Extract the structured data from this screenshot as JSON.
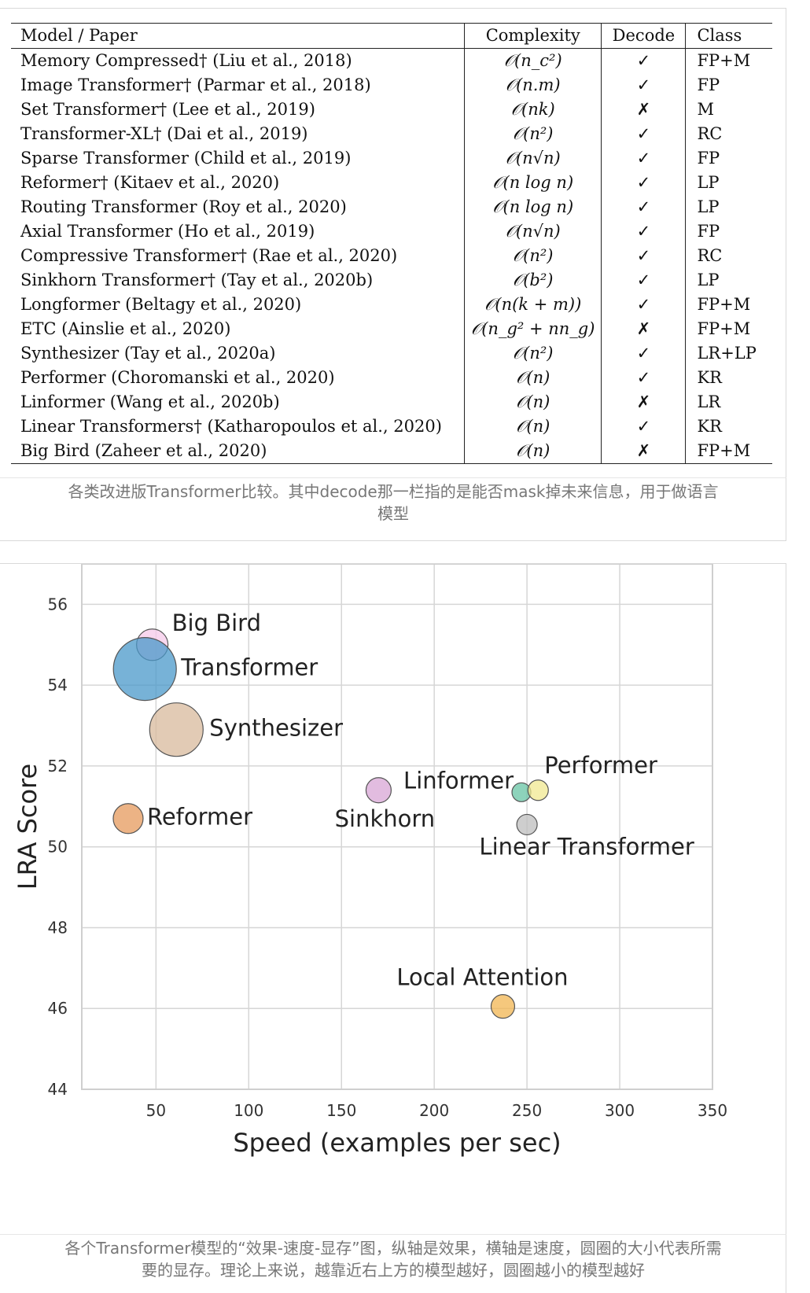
{
  "table": {
    "headers": {
      "model": "Model / Paper",
      "complexity": "Complexity",
      "decode": "Decode",
      "class": "Class"
    },
    "rows": [
      {
        "model": "Memory Compressed† (Liu et al., 2018)",
        "complexity": "𝒪(n_c²)",
        "decode": "✓",
        "class": "FP+M"
      },
      {
        "model": "Image Transformer† (Parmar et al., 2018)",
        "complexity": "𝒪(n.m)",
        "decode": "✓",
        "class": "FP"
      },
      {
        "model": "Set Transformer† (Lee et al., 2019)",
        "complexity": "𝒪(nk)",
        "decode": "✗",
        "class": "M"
      },
      {
        "model": "Transformer-XL† (Dai et al., 2019)",
        "complexity": "𝒪(n²)",
        "decode": "✓",
        "class": "RC"
      },
      {
        "model": "Sparse Transformer  (Child et al., 2019)",
        "complexity": "𝒪(n√n)",
        "decode": "✓",
        "class": "FP"
      },
      {
        "model": "Reformer† (Kitaev et al., 2020)",
        "complexity": "𝒪(n log n)",
        "decode": "✓",
        "class": "LP"
      },
      {
        "model": "Routing Transformer (Roy et al., 2020)",
        "complexity": "𝒪(n log n)",
        "decode": "✓",
        "class": "LP"
      },
      {
        "model": "Axial Transformer (Ho et al., 2019)",
        "complexity": "𝒪(n√n)",
        "decode": "✓",
        "class": "FP"
      },
      {
        "model": "Compressive Transformer† (Rae et al., 2020)",
        "complexity": "𝒪(n²)",
        "decode": "✓",
        "class": "RC"
      },
      {
        "model": "Sinkhorn Transformer† (Tay et al., 2020b)",
        "complexity": "𝒪(b²)",
        "decode": "✓",
        "class": "LP"
      },
      {
        "model": "Longformer (Beltagy et al., 2020)",
        "complexity": "𝒪(n(k + m))",
        "decode": "✓",
        "class": "FP+M"
      },
      {
        "model": "ETC (Ainslie et al., 2020)",
        "complexity": "𝒪(n_g² + nn_g)",
        "decode": "✗",
        "class": "FP+M"
      },
      {
        "model": "Synthesizer (Tay et al., 2020a)",
        "complexity": "𝒪(n²)",
        "decode": "✓",
        "class": "LR+LP"
      },
      {
        "model": "Performer (Choromanski et al., 2020)",
        "complexity": "𝒪(n)",
        "decode": "✓",
        "class": "KR"
      },
      {
        "model": "Linformer (Wang et al., 2020b)",
        "complexity": "𝒪(n)",
        "decode": "✗",
        "class": "LR"
      },
      {
        "model": "Linear Transformers†  (Katharopoulos et al., 2020)",
        "complexity": "𝒪(n)",
        "decode": "✓",
        "class": "KR"
      },
      {
        "model": "Big Bird (Zaheer et al., 2020)",
        "complexity": "𝒪(n)",
        "decode": "✗",
        "class": "FP+M"
      }
    ],
    "caption": "各类改进版Transformer比较。其中decode那一栏指的是能否mask掉未来信息，用于做语言模型"
  },
  "chart_data": {
    "type": "scatter",
    "xlabel": "Speed (examples per sec)",
    "ylabel": "LRA Score",
    "xlim": [
      10,
      350
    ],
    "ylim": [
      44,
      57
    ],
    "xticks": [
      50,
      100,
      150,
      200,
      250,
      300,
      350
    ],
    "yticks": [
      44,
      46,
      48,
      50,
      52,
      54,
      56
    ],
    "grid": true,
    "points": [
      {
        "name": "Big Bird",
        "x": 48,
        "y": 55.0,
        "size": 20,
        "color": "#f6c9ea"
      },
      {
        "name": "Transformer",
        "x": 44,
        "y": 54.4,
        "size": 40,
        "color": "#4a98c9"
      },
      {
        "name": "Synthesizer",
        "x": 61,
        "y": 52.9,
        "size": 34,
        "color": "#d8b99c"
      },
      {
        "name": "Reformer",
        "x": 35,
        "y": 50.7,
        "size": 19,
        "color": "#e59a5c"
      },
      {
        "name": "Sinkhorn",
        "x": 170,
        "y": 51.4,
        "size": 16,
        "color": "#d8a5d6"
      },
      {
        "name": "Linformer",
        "x": 247,
        "y": 51.35,
        "size": 12,
        "color": "#67c4a4"
      },
      {
        "name": "Performer",
        "x": 256,
        "y": 51.4,
        "size": 13,
        "color": "#f0e890"
      },
      {
        "name": "Linear Transformer",
        "x": 250,
        "y": 50.55,
        "size": 13,
        "color": "#bdbdbd"
      },
      {
        "name": "Local Attention",
        "x": 237,
        "y": 46.05,
        "size": 15,
        "color": "#f2b552"
      }
    ],
    "caption": "各个Transformer模型的“效果-速度-显存”图，纵轴是效果，横轴是速度，圆圈的大小代表所需要的显存。理论上来说，越靠近右上方的模型越好，圆圈越小的模型越好"
  }
}
